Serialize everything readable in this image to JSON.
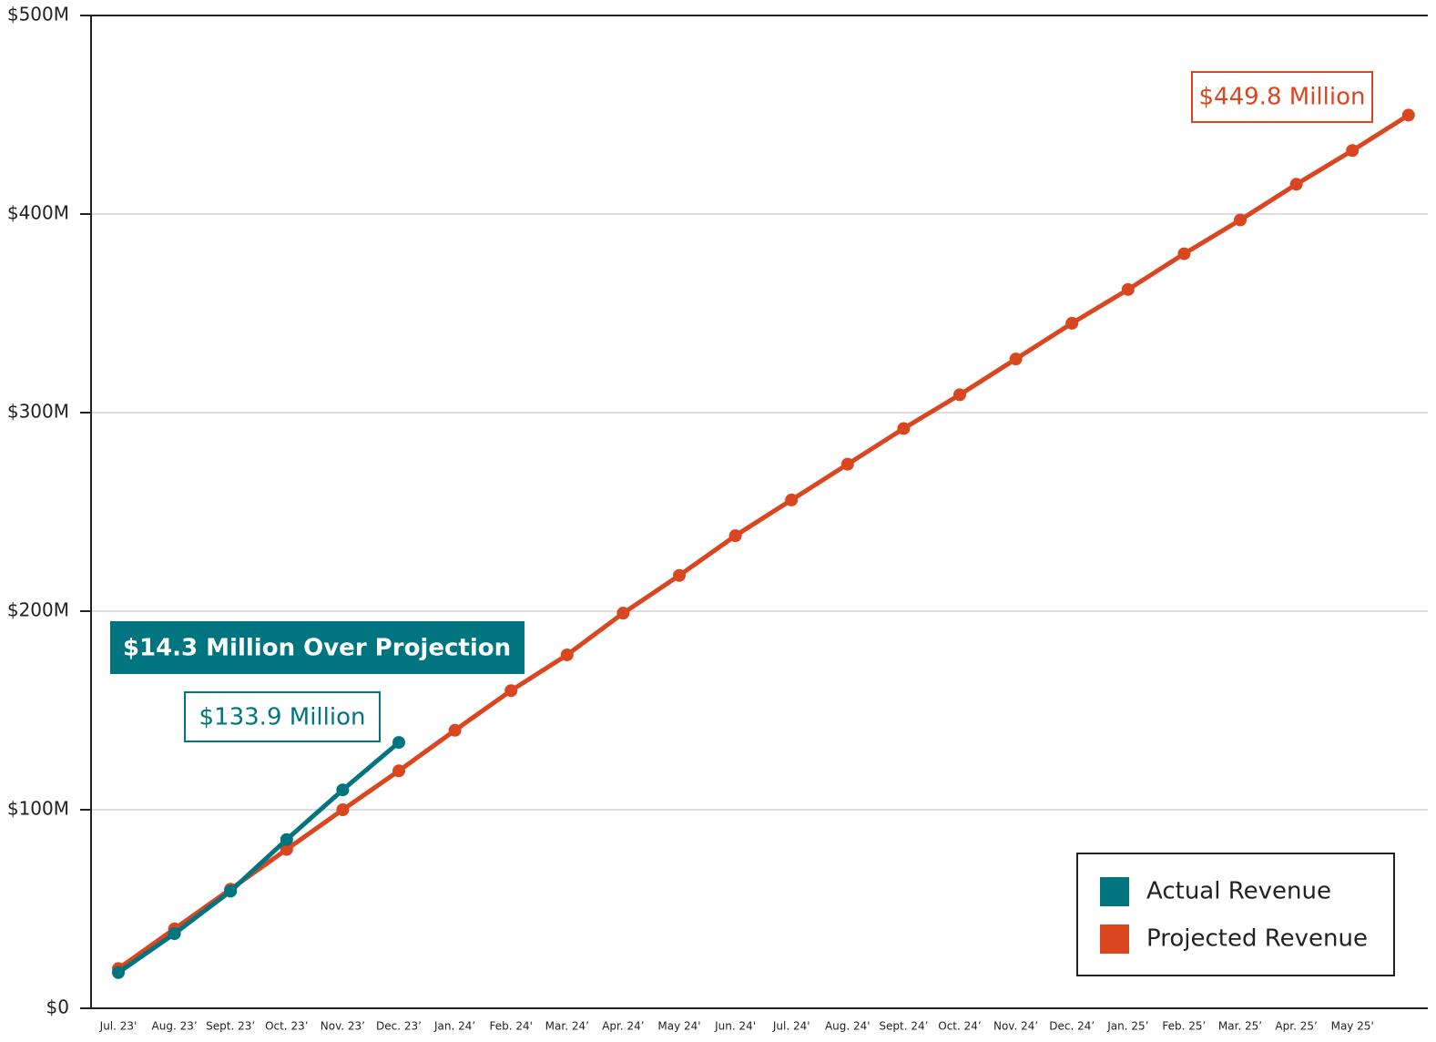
{
  "chart_data": {
    "type": "line",
    "categories": [
      "Jul. 23'",
      "Aug. 23’",
      "Sept. 23’",
      "Oct. 23’",
      "Nov. 23’",
      "Dec. 23’",
      "Jan. 24’",
      "Feb. 24'",
      "Mar. 24’",
      "Apr. 24’",
      "May 24'",
      "Jun. 24'",
      "Jul. 24'",
      "Aug. 24'",
      "Sept. 24’",
      "Oct. 24’",
      "Nov. 24’",
      "Dec. 24’",
      "Jan. 25’",
      "Feb. 25’",
      "Mar. 25’",
      "Apr. 25’",
      "May 25'",
      null
    ],
    "series": [
      {
        "name": "Actual Revenue",
        "color": "#00757f",
        "values": [
          18,
          37.6,
          59,
          85,
          110,
          133.9,
          null,
          null,
          null,
          null,
          null,
          null,
          null,
          null,
          null,
          null,
          null,
          null,
          null,
          null,
          null,
          null,
          null,
          null
        ]
      },
      {
        "name": "Projected Revenue",
        "color": "#d9461f",
        "values": [
          20,
          40,
          60,
          80,
          100,
          119.6,
          140,
          160,
          178,
          199,
          218,
          238,
          256,
          274,
          292,
          309,
          327,
          345,
          362,
          380,
          397,
          415,
          432,
          449.8
        ]
      }
    ],
    "ylim": [
      0,
      500
    ],
    "yticks": [
      {
        "value": 0,
        "label": "$0"
      },
      {
        "value": 100,
        "label": "$100M"
      },
      {
        "value": 200,
        "label": "$200M"
      },
      {
        "value": 300,
        "label": "$300M"
      },
      {
        "value": 400,
        "label": "$400M"
      },
      {
        "value": 500,
        "label": "$500M"
      }
    ],
    "grid": true,
    "legend": "lower right",
    "annotations": [
      "$449.8 Million",
      "$133.9 Million",
      "$14.3 Million Over Projection"
    ]
  }
}
